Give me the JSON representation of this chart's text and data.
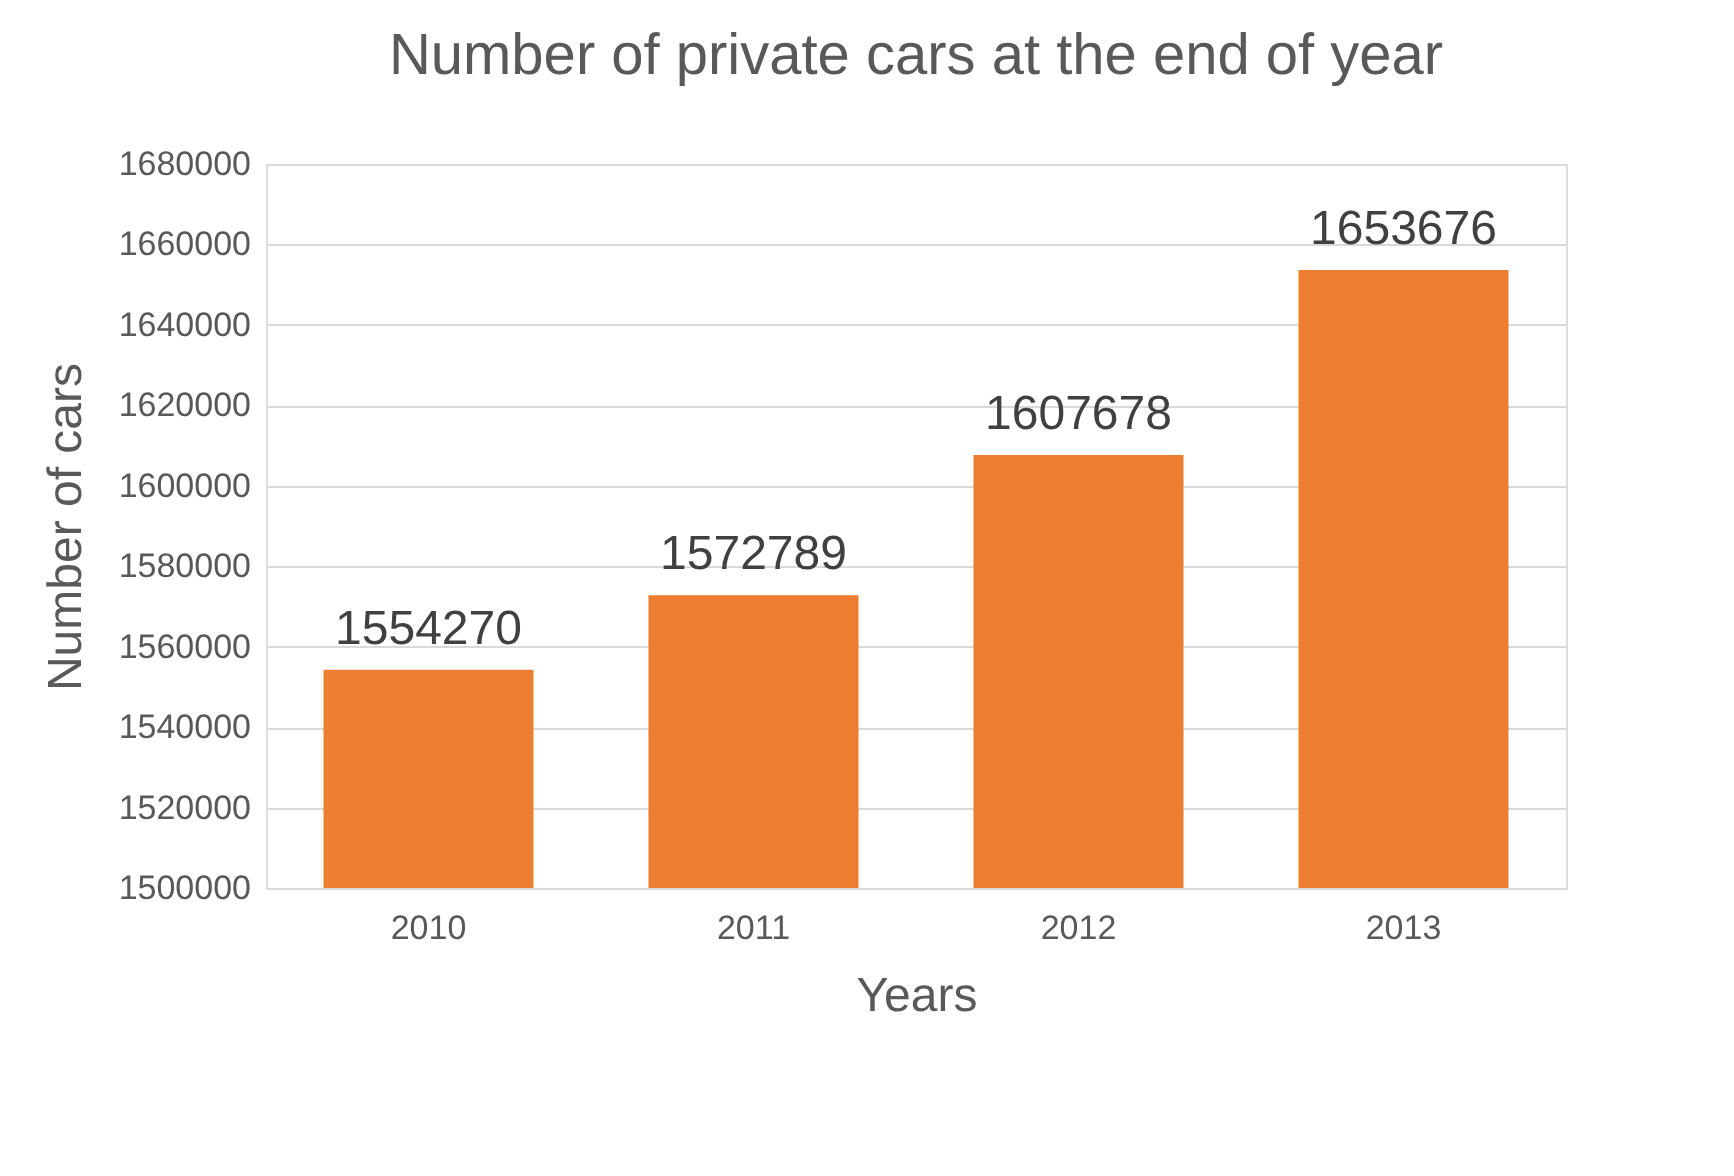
{
  "chart_data": {
    "type": "bar",
    "title": "Number of private cars at the end of year",
    "xlabel": "Years",
    "ylabel": "Number of cars",
    "categories": [
      "2010",
      "2011",
      "2012",
      "2013"
    ],
    "values": [
      1554270,
      1572789,
      1607678,
      1653676
    ],
    "color": "#ed7d31",
    "ylim": [
      1500000,
      1680000
    ],
    "yticks": [
      1500000,
      1520000,
      1540000,
      1560000,
      1580000,
      1600000,
      1620000,
      1640000,
      1660000,
      1680000
    ],
    "grid": "y",
    "data_labels": true
  }
}
